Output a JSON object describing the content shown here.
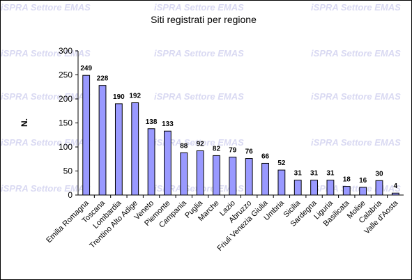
{
  "watermark": "iSPRA Settore EMAS",
  "chart_data": {
    "type": "bar",
    "title": "Siti registrati per regione",
    "xlabel": "",
    "ylabel": "N.",
    "ylim": [
      0,
      300
    ],
    "yticks": [
      0,
      50,
      100,
      150,
      200,
      250,
      300
    ],
    "grid": false,
    "legend": "none",
    "bar_color": "#9999ff",
    "categories": [
      "Emilia Romagna",
      "Toscana",
      "Lombardia",
      "Trentino Alto Adige",
      "Veneto",
      "Piemonte",
      "Campania",
      "Puglia",
      "Marche",
      "Lazio",
      "Abruzzo",
      "Friuli Venezia Giulia",
      "Umbria",
      "Sicilia",
      "Sardegna",
      "Liguria",
      "Basilicata",
      "Molise",
      "Calabria",
      "Valle d'Aosta"
    ],
    "values": [
      249,
      228,
      190,
      192,
      138,
      133,
      88,
      92,
      82,
      79,
      76,
      66,
      52,
      31,
      31,
      31,
      18,
      16,
      30,
      4
    ]
  }
}
